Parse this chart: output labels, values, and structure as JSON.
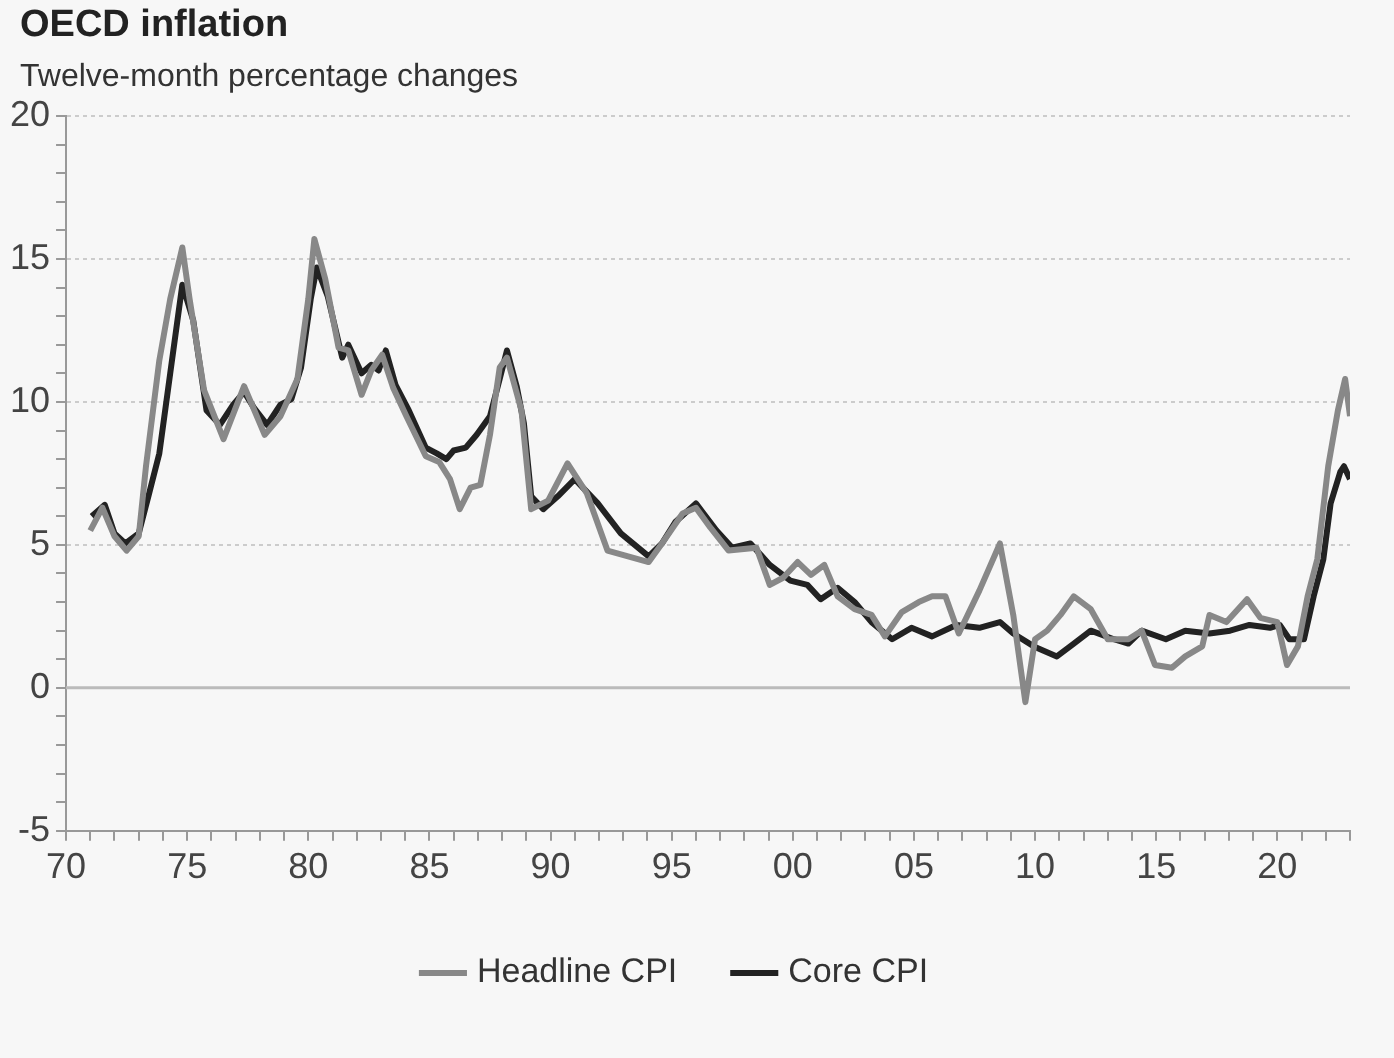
{
  "chart_data": {
    "type": "line",
    "title": "OECD inflation",
    "subtitle": "Twelve-month percentage changes",
    "xlim": [
      1970,
      2023
    ],
    "xticks": [
      {
        "value": 1970,
        "label": "70"
      },
      {
        "value": 1971,
        "label": null
      },
      {
        "value": 1972,
        "label": null
      },
      {
        "value": 1973,
        "label": null
      },
      {
        "value": 1974,
        "label": null
      },
      {
        "value": 1975,
        "label": "75"
      },
      {
        "value": 1976,
        "label": null
      },
      {
        "value": 1977,
        "label": null
      },
      {
        "value": 1978,
        "label": null
      },
      {
        "value": 1979,
        "label": null
      },
      {
        "value": 1980,
        "label": "80"
      },
      {
        "value": 1981,
        "label": null
      },
      {
        "value": 1982,
        "label": null
      },
      {
        "value": 1983,
        "label": null
      },
      {
        "value": 1984,
        "label": null
      },
      {
        "value": 1985,
        "label": "85"
      },
      {
        "value": 1986,
        "label": null
      },
      {
        "value": 1987,
        "label": null
      },
      {
        "value": 1988,
        "label": null
      },
      {
        "value": 1989,
        "label": null
      },
      {
        "value": 1990,
        "label": "90"
      },
      {
        "value": 1991,
        "label": null
      },
      {
        "value": 1992,
        "label": null
      },
      {
        "value": 1993,
        "label": null
      },
      {
        "value": 1994,
        "label": null
      },
      {
        "value": 1995,
        "label": "95"
      },
      {
        "value": 1996,
        "label": null
      },
      {
        "value": 1997,
        "label": null
      },
      {
        "value": 1998,
        "label": null
      },
      {
        "value": 1999,
        "label": null
      },
      {
        "value": 2000,
        "label": "00"
      },
      {
        "value": 2001,
        "label": null
      },
      {
        "value": 2002,
        "label": null
      },
      {
        "value": 2003,
        "label": null
      },
      {
        "value": 2004,
        "label": null
      },
      {
        "value": 2005,
        "label": "05"
      },
      {
        "value": 2006,
        "label": null
      },
      {
        "value": 2007,
        "label": null
      },
      {
        "value": 2008,
        "label": null
      },
      {
        "value": 2009,
        "label": null
      },
      {
        "value": 2010,
        "label": "10"
      },
      {
        "value": 2011,
        "label": null
      },
      {
        "value": 2012,
        "label": null
      },
      {
        "value": 2013,
        "label": null
      },
      {
        "value": 2014,
        "label": null
      },
      {
        "value": 2015,
        "label": "15"
      },
      {
        "value": 2016,
        "label": null
      },
      {
        "value": 2017,
        "label": null
      },
      {
        "value": 2018,
        "label": null
      },
      {
        "value": 2019,
        "label": null
      },
      {
        "value": 2020,
        "label": "20"
      },
      {
        "value": 2021,
        "label": null
      },
      {
        "value": 2022,
        "label": null
      },
      {
        "value": 2023,
        "label": null
      }
    ],
    "ylim": [
      -5,
      20
    ],
    "yticks": [
      -5,
      {
        "value": -4,
        "label": null
      },
      {
        "value": -3,
        "label": null
      },
      {
        "value": -2,
        "label": null
      },
      {
        "value": -1,
        "label": null
      },
      0,
      {
        "value": 1,
        "label": null
      },
      {
        "value": 2,
        "label": null
      },
      {
        "value": 3,
        "label": null
      },
      {
        "value": 4,
        "label": null
      },
      5,
      {
        "value": 6,
        "label": null
      },
      {
        "value": 7,
        "label": null
      },
      {
        "value": 8,
        "label": null
      },
      {
        "value": 9,
        "label": null
      },
      10,
      {
        "value": 11,
        "label": null
      },
      {
        "value": 12,
        "label": null
      },
      {
        "value": 13,
        "label": null
      },
      {
        "value": 14,
        "label": null
      },
      15,
      {
        "value": 16,
        "label": null
      },
      {
        "value": 17,
        "label": null
      },
      {
        "value": 18,
        "label": null
      },
      {
        "value": 19,
        "label": null
      },
      20
    ],
    "grid": "y",
    "legend": "bottom",
    "ref_lines": [
      {
        "axis": "y",
        "value": 0,
        "label": null,
        "color": "#bbbbbb"
      }
    ],
    "series": [
      {
        "name": "Headline CPI",
        "color": "#888888",
        "x": [
          1971.0,
          1971.5,
          1972.0,
          1972.5,
          1973.0,
          1973.3,
          1973.85,
          1974.3,
          1974.8,
          1975.1,
          1975.7,
          1976.5,
          1977.35,
          1978.2,
          1978.85,
          1979.55,
          1980.0,
          1980.25,
          1980.7,
          1981.25,
          1981.65,
          1982.2,
          1982.6,
          1983.05,
          1983.5,
          1984.05,
          1984.85,
          1985.4,
          1985.85,
          1986.25,
          1986.7,
          1987.1,
          1987.5,
          1987.9,
          1988.2,
          1988.8,
          1989.2,
          1989.9,
          1990.7,
          1991.5,
          1992.35,
          1993.2,
          1994.05,
          1994.6,
          1995.45,
          1996.0,
          1996.6,
          1997.35,
          1998.5,
          1999.05,
          1999.6,
          2000.2,
          2000.75,
          2001.3,
          2001.85,
          2002.55,
          2003.25,
          2003.8,
          2004.5,
          2005.2,
          2005.75,
          2006.3,
          2006.85,
          2007.7,
          2008.55,
          2009.1,
          2009.6,
          2010.0,
          2010.5,
          2011.05,
          2011.6,
          2012.3,
          2013.0,
          2013.85,
          2014.4,
          2014.95,
          2015.65,
          2016.2,
          2016.9,
          2017.2,
          2017.9,
          2018.75,
          2019.3,
          2020.0,
          2020.4,
          2020.85,
          2021.25,
          2021.65,
          2022.1,
          2022.5,
          2022.8,
          2023.0
        ],
        "values": [
          5.5,
          6.3,
          5.3,
          4.8,
          5.3,
          7.75,
          11.45,
          13.6,
          15.4,
          13.6,
          10.4,
          8.7,
          10.55,
          8.85,
          9.5,
          10.8,
          13.6,
          15.7,
          14.3,
          11.9,
          11.8,
          10.25,
          11.1,
          11.65,
          10.5,
          9.5,
          8.1,
          7.9,
          7.3,
          6.25,
          7.0,
          7.1,
          8.85,
          11.2,
          11.55,
          9.7,
          6.25,
          6.55,
          7.85,
          6.8,
          4.8,
          4.6,
          4.4,
          5.05,
          6.1,
          6.3,
          5.6,
          4.8,
          4.9,
          3.6,
          3.85,
          4.4,
          3.95,
          4.3,
          3.2,
          2.75,
          2.55,
          1.8,
          2.65,
          3.0,
          3.2,
          3.2,
          1.9,
          3.4,
          5.05,
          2.55,
          -0.5,
          1.7,
          2.0,
          2.55,
          3.2,
          2.75,
          1.7,
          1.7,
          2.0,
          0.8,
          0.7,
          1.1,
          1.45,
          2.55,
          2.3,
          3.1,
          2.45,
          2.3,
          0.8,
          1.45,
          3.2,
          4.5,
          7.75,
          9.7,
          10.8,
          9.5
        ]
      },
      {
        "name": "Core CPI",
        "color": "#222222",
        "x": [
          1971.06,
          1971.6,
          1972.0,
          1972.45,
          1973.0,
          1973.4,
          1973.85,
          1974.3,
          1974.8,
          1975.25,
          1975.8,
          1976.35,
          1976.9,
          1977.35,
          1977.75,
          1978.3,
          1978.85,
          1979.3,
          1979.7,
          1980.1,
          1980.35,
          1980.8,
          1981.4,
          1981.65,
          1982.2,
          1982.6,
          1982.9,
          1983.2,
          1983.6,
          1984.15,
          1984.85,
          1985.3,
          1985.7,
          1986.0,
          1986.5,
          1986.95,
          1987.5,
          1987.9,
          1988.2,
          1988.6,
          1988.9,
          1989.2,
          1989.7,
          1990.3,
          1991.0,
          1991.95,
          1992.9,
          1994.05,
          1994.6,
          1995.15,
          1996.0,
          1996.85,
          1997.5,
          1998.25,
          1999.05,
          1999.9,
          2000.6,
          2001.15,
          2001.85,
          2002.55,
          2003.25,
          2004.1,
          2004.9,
          2005.75,
          2006.75,
          2007.7,
          2008.55,
          2009.1,
          2009.95,
          2010.9,
          2011.6,
          2012.3,
          2013.25,
          2013.85,
          2014.4,
          2015.4,
          2016.2,
          2017.2,
          2018.05,
          2018.85,
          2019.7,
          2020.1,
          2020.5,
          2021.1,
          2021.5,
          2021.9,
          2022.2,
          2022.6,
          2022.75,
          2023.0
        ],
        "values": [
          6.0,
          6.4,
          5.4,
          5.05,
          5.4,
          6.7,
          8.2,
          11.0,
          14.1,
          12.85,
          9.7,
          9.2,
          9.9,
          10.35,
          9.8,
          9.2,
          9.9,
          10.1,
          11.2,
          13.6,
          14.7,
          13.7,
          11.55,
          12.0,
          11.0,
          11.3,
          11.1,
          11.8,
          10.6,
          9.7,
          8.4,
          8.2,
          8.0,
          8.3,
          8.4,
          8.85,
          9.5,
          10.8,
          11.8,
          10.55,
          9.25,
          6.7,
          6.25,
          6.7,
          7.3,
          6.45,
          5.4,
          4.6,
          5.05,
          5.8,
          6.45,
          5.5,
          4.9,
          5.05,
          4.3,
          3.75,
          3.6,
          3.1,
          3.5,
          3.0,
          2.3,
          1.7,
          2.1,
          1.8,
          2.2,
          2.1,
          2.3,
          1.9,
          1.45,
          1.1,
          1.55,
          2.0,
          1.7,
          1.55,
          2.0,
          1.7,
          2.0,
          1.9,
          2.0,
          2.2,
          2.1,
          2.2,
          1.7,
          1.7,
          3.2,
          4.5,
          6.45,
          7.55,
          7.75,
          7.3
        ]
      }
    ]
  }
}
